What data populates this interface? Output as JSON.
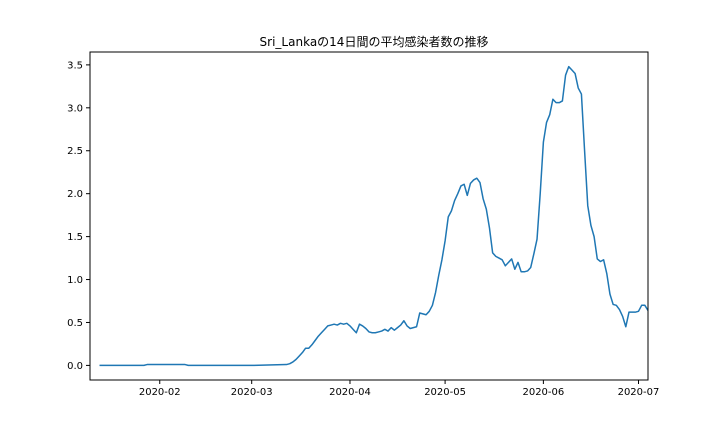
{
  "chart_data": {
    "type": "line",
    "title": "Sri_Lankaの14日間の平均感染者数の推移",
    "xlabel": "",
    "ylabel": "",
    "xlim": [
      "2020-01-10",
      "2020-07-04"
    ],
    "ylim": [
      -0.17,
      3.65
    ],
    "grid": false,
    "x_ticks": [
      {
        "date": "2020-02-01",
        "label": "2020-02"
      },
      {
        "date": "2020-03-01",
        "label": "2020-03"
      },
      {
        "date": "2020-04-01",
        "label": "2020-04"
      },
      {
        "date": "2020-05-01",
        "label": "2020-05"
      },
      {
        "date": "2020-06-01",
        "label": "2020-06"
      },
      {
        "date": "2020-07-01",
        "label": "2020-07"
      }
    ],
    "y_ticks": [
      {
        "value": 0.0,
        "label": "0.0"
      },
      {
        "value": 0.5,
        "label": "0.5"
      },
      {
        "value": 1.0,
        "label": "1.0"
      },
      {
        "value": 1.5,
        "label": "1.5"
      },
      {
        "value": 2.0,
        "label": "2.0"
      },
      {
        "value": 2.5,
        "label": "2.5"
      },
      {
        "value": 3.0,
        "label": "3.0"
      },
      {
        "value": 3.5,
        "label": "3.5"
      }
    ],
    "series": [
      {
        "name": "",
        "color": "#1f77b4",
        "points": [
          [
            "2020-01-13",
            0.0
          ],
          [
            "2020-01-27",
            0.0
          ],
          [
            "2020-01-28",
            0.01
          ],
          [
            "2020-02-09",
            0.01
          ],
          [
            "2020-02-10",
            0.0
          ],
          [
            "2020-03-01",
            0.0
          ],
          [
            "2020-03-12",
            0.01
          ],
          [
            "2020-03-13",
            0.02
          ],
          [
            "2020-03-14",
            0.04
          ],
          [
            "2020-03-15",
            0.07
          ],
          [
            "2020-03-16",
            0.11
          ],
          [
            "2020-03-17",
            0.15
          ],
          [
            "2020-03-18",
            0.2
          ],
          [
            "2020-03-19",
            0.2
          ],
          [
            "2020-03-20",
            0.24
          ],
          [
            "2020-03-21",
            0.29
          ],
          [
            "2020-03-22",
            0.34
          ],
          [
            "2020-03-23",
            0.38
          ],
          [
            "2020-03-24",
            0.42
          ],
          [
            "2020-03-25",
            0.46
          ],
          [
            "2020-03-26",
            0.47
          ],
          [
            "2020-03-27",
            0.48
          ],
          [
            "2020-03-28",
            0.47
          ],
          [
            "2020-03-29",
            0.49
          ],
          [
            "2020-03-30",
            0.48
          ],
          [
            "2020-03-31",
            0.49
          ],
          [
            "2020-04-01",
            0.46
          ],
          [
            "2020-04-02",
            0.42
          ],
          [
            "2020-04-03",
            0.38
          ],
          [
            "2020-04-04",
            0.48
          ],
          [
            "2020-04-05",
            0.46
          ],
          [
            "2020-04-06",
            0.43
          ],
          [
            "2020-04-07",
            0.39
          ],
          [
            "2020-04-08",
            0.38
          ],
          [
            "2020-04-09",
            0.38
          ],
          [
            "2020-04-10",
            0.39
          ],
          [
            "2020-04-11",
            0.4
          ],
          [
            "2020-04-12",
            0.42
          ],
          [
            "2020-04-13",
            0.4
          ],
          [
            "2020-04-14",
            0.44
          ],
          [
            "2020-04-15",
            0.41
          ],
          [
            "2020-04-16",
            0.44
          ],
          [
            "2020-04-17",
            0.47
          ],
          [
            "2020-04-18",
            0.52
          ],
          [
            "2020-04-19",
            0.46
          ],
          [
            "2020-04-20",
            0.43
          ],
          [
            "2020-04-21",
            0.44
          ],
          [
            "2020-04-22",
            0.45
          ],
          [
            "2020-04-23",
            0.61
          ],
          [
            "2020-04-24",
            0.6
          ],
          [
            "2020-04-25",
            0.59
          ],
          [
            "2020-04-26",
            0.63
          ],
          [
            "2020-04-27",
            0.7
          ],
          [
            "2020-04-28",
            0.85
          ],
          [
            "2020-04-29",
            1.05
          ],
          [
            "2020-04-30",
            1.23
          ],
          [
            "2020-05-01",
            1.45
          ],
          [
            "2020-05-02",
            1.73
          ],
          [
            "2020-05-03",
            1.8
          ],
          [
            "2020-05-04",
            1.92
          ],
          [
            "2020-05-05",
            2.0
          ],
          [
            "2020-05-06",
            2.09
          ],
          [
            "2020-05-07",
            2.11
          ],
          [
            "2020-05-08",
            1.98
          ],
          [
            "2020-05-09",
            2.12
          ],
          [
            "2020-05-10",
            2.16
          ],
          [
            "2020-05-11",
            2.18
          ],
          [
            "2020-05-12",
            2.13
          ],
          [
            "2020-05-13",
            1.94
          ],
          [
            "2020-05-14",
            1.82
          ],
          [
            "2020-05-15",
            1.6
          ],
          [
            "2020-05-16",
            1.31
          ],
          [
            "2020-05-17",
            1.27
          ],
          [
            "2020-05-18",
            1.25
          ],
          [
            "2020-05-19",
            1.23
          ],
          [
            "2020-05-20",
            1.16
          ],
          [
            "2020-05-21",
            1.2
          ],
          [
            "2020-05-22",
            1.24
          ],
          [
            "2020-05-23",
            1.12
          ],
          [
            "2020-05-24",
            1.2
          ],
          [
            "2020-05-25",
            1.09
          ],
          [
            "2020-05-26",
            1.09
          ],
          [
            "2020-05-27",
            1.1
          ],
          [
            "2020-05-28",
            1.14
          ],
          [
            "2020-05-29",
            1.3
          ],
          [
            "2020-05-30",
            1.47
          ],
          [
            "2020-05-31",
            2.0
          ],
          [
            "2020-06-01",
            2.6
          ],
          [
            "2020-06-02",
            2.83
          ],
          [
            "2020-06-03",
            2.92
          ],
          [
            "2020-06-04",
            3.1
          ],
          [
            "2020-06-05",
            3.06
          ],
          [
            "2020-06-06",
            3.06
          ],
          [
            "2020-06-07",
            3.08
          ],
          [
            "2020-06-08",
            3.38
          ],
          [
            "2020-06-09",
            3.48
          ],
          [
            "2020-06-10",
            3.44
          ],
          [
            "2020-06-11",
            3.4
          ],
          [
            "2020-06-12",
            3.23
          ],
          [
            "2020-06-13",
            3.16
          ],
          [
            "2020-06-14",
            2.5
          ],
          [
            "2020-06-15",
            1.86
          ],
          [
            "2020-06-16",
            1.63
          ],
          [
            "2020-06-17",
            1.5
          ],
          [
            "2020-06-18",
            1.24
          ],
          [
            "2020-06-19",
            1.21
          ],
          [
            "2020-06-20",
            1.23
          ],
          [
            "2020-06-21",
            1.07
          ],
          [
            "2020-06-22",
            0.83
          ],
          [
            "2020-06-23",
            0.71
          ],
          [
            "2020-06-24",
            0.7
          ],
          [
            "2020-06-25",
            0.65
          ],
          [
            "2020-06-26",
            0.57
          ],
          [
            "2020-06-27",
            0.45
          ],
          [
            "2020-06-28",
            0.62
          ],
          [
            "2020-06-29",
            0.62
          ],
          [
            "2020-06-30",
            0.62
          ],
          [
            "2020-07-01",
            0.63
          ],
          [
            "2020-07-02",
            0.7
          ],
          [
            "2020-07-03",
            0.7
          ],
          [
            "2020-07-04",
            0.64
          ]
        ]
      }
    ]
  }
}
